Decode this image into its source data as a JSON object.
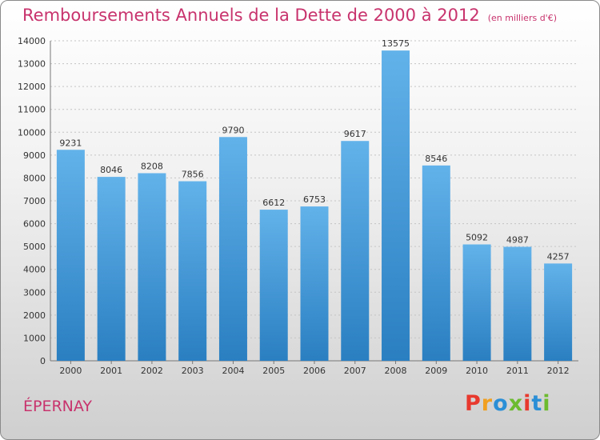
{
  "header": {
    "title": "Remboursements Annuels de la Dette de 2000 à 2012",
    "subtitle": "(en milliers d'€)"
  },
  "footer": {
    "city": "ÉPERNAY",
    "logo_text": "Proxiti"
  },
  "colors": {
    "title": "#c8336d",
    "bar_light": "#62b2ea",
    "bar_dark": "#2a7fc1"
  },
  "chart_data": {
    "type": "bar",
    "categories": [
      "2000",
      "2001",
      "2002",
      "2003",
      "2004",
      "2005",
      "2006",
      "2007",
      "2008",
      "2009",
      "2010",
      "2011",
      "2012"
    ],
    "values": [
      9231,
      8046,
      8208,
      7856,
      9790,
      6612,
      6753,
      9617,
      13575,
      8546,
      5092,
      4987,
      4257
    ],
    "yticks": [
      0,
      1000,
      2000,
      3000,
      4000,
      5000,
      6000,
      7000,
      8000,
      9000,
      10000,
      11000,
      12000,
      13000,
      14000
    ],
    "ylim": [
      0,
      14000
    ],
    "grid": true,
    "title": "Remboursements Annuels de la Dette de 2000 à 2012",
    "xlabel": "",
    "ylabel": ""
  }
}
